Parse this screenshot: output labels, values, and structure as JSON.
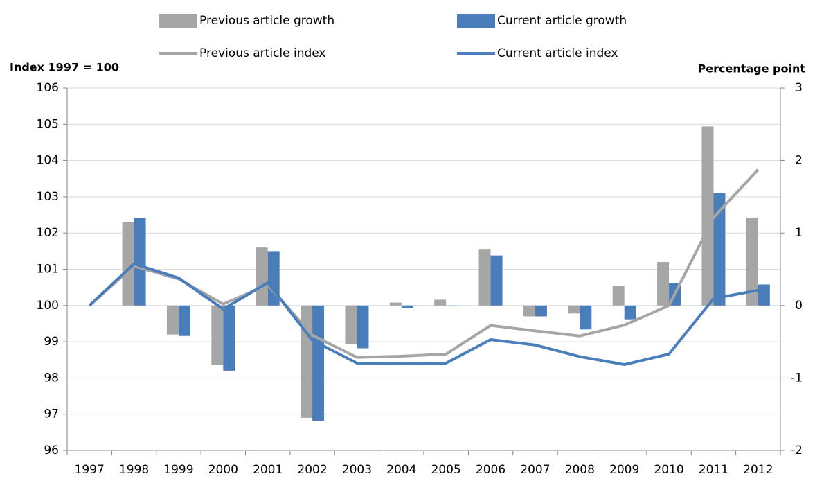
{
  "chart_data": {
    "type": "combo",
    "y_label": "Index 1997 = 100",
    "y2_label": "Percentage point",
    "categories": [
      "1997",
      "1998",
      "1999",
      "2000",
      "2001",
      "2002",
      "2003",
      "2004",
      "2005",
      "2006",
      "2007",
      "2008",
      "2009",
      "2010",
      "2011",
      "2012"
    ],
    "ylim": [
      96,
      106
    ],
    "yticks": [
      96,
      97,
      98,
      99,
      100,
      101,
      102,
      103,
      104,
      105,
      106
    ],
    "y2lim": [
      -2,
      3
    ],
    "y2ticks": [
      -2,
      -1,
      0,
      1,
      2,
      3
    ],
    "grid": true,
    "series": [
      {
        "name": "Previous article growth",
        "type": "bar",
        "axis": "y2",
        "color": "#a6a6a6",
        "values": [
          null,
          1.15,
          -0.4,
          -0.82,
          0.8,
          -1.55,
          -0.53,
          0.04,
          0.08,
          0.78,
          -0.15,
          -0.11,
          0.27,
          0.6,
          2.47,
          1.21
        ]
      },
      {
        "name": "Current article growth",
        "type": "bar",
        "axis": "y2",
        "color": "#4a7ebb",
        "values": [
          null,
          1.21,
          -0.42,
          -0.9,
          0.75,
          -1.59,
          -0.59,
          -0.04,
          -0.01,
          0.69,
          -0.15,
          -0.33,
          -0.19,
          0.31,
          1.55,
          0.29
        ]
      },
      {
        "name": "Previous article index",
        "type": "line",
        "axis": "y",
        "color": "#a6a6a6",
        "values": [
          100,
          101.09,
          100.73,
          100.04,
          100.57,
          99.18,
          98.57,
          98.6,
          98.66,
          99.45,
          99.3,
          99.16,
          99.46,
          100.0,
          102.43,
          103.75
        ]
      },
      {
        "name": "Current article index",
        "type": "line",
        "axis": "y",
        "color": "#4a7ebb",
        "values": [
          100,
          101.15,
          100.76,
          99.9,
          100.63,
          99.04,
          98.41,
          98.39,
          98.41,
          99.06,
          98.91,
          98.59,
          98.37,
          98.66,
          100.19,
          100.42
        ]
      }
    ]
  }
}
